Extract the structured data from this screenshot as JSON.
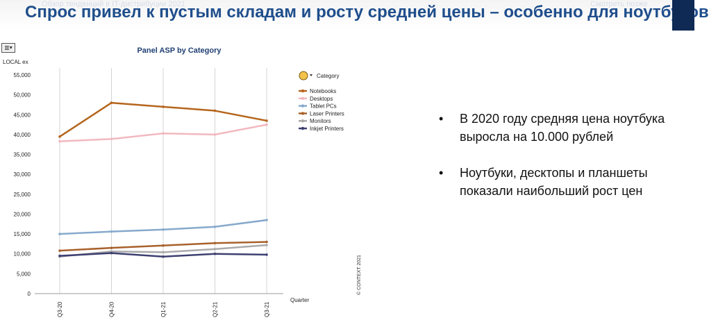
{
  "slide": {
    "title": "Спрос привел к пустым складам и росту средней цены – особенно для ноутбуков",
    "overlay_left": "Обзор тенденций в IT-дистрибуции 2021",
    "overlay_right": "Смотреть позже",
    "bullets": [
      "В 2020 году средняя цена ноутбука выросла на 10.000 рублей",
      "Ноутбуки, десктопы и планшеты показали наибольший рост цен"
    ],
    "colors": {
      "title": "#1f4e8c",
      "corner": "#0f2a55"
    }
  },
  "chart_data": {
    "type": "line",
    "title": "Panel ASP by Category",
    "ylabel": "LOCAL ex",
    "xlabel": "Quarter",
    "legend_title": "Category",
    "copyright": "© CONTEXT 2021",
    "categories": [
      "Q3-20",
      "Q4-20",
      "Q1-21",
      "Q2-21",
      "Q3-21"
    ],
    "ylim": [
      0,
      55000
    ],
    "yticks": [
      "0",
      "5,000",
      "10,000",
      "15,000",
      "20,000",
      "25,000",
      "30,000",
      "35,000",
      "40,000",
      "45,000",
      "50,000",
      "55,000"
    ],
    "grid": "vertical",
    "legend_position": "right",
    "series": [
      {
        "name": "Notebooks",
        "color": "#b5651d",
        "values": [
          39500,
          48000,
          47000,
          46000,
          43500
        ]
      },
      {
        "name": "Desktops",
        "color": "#f2b8bf",
        "values": [
          38300,
          38900,
          40300,
          40000,
          42500
        ]
      },
      {
        "name": "Tablet PCs",
        "color": "#86a9cc",
        "values": [
          15000,
          15600,
          16100,
          16800,
          18500
        ]
      },
      {
        "name": "Laser Printers",
        "color": "#a8612b",
        "values": [
          10800,
          11500,
          12100,
          12700,
          13000
        ]
      },
      {
        "name": "Monitors",
        "color": "#aaaaaa",
        "values": [
          9300,
          10600,
          10400,
          11200,
          12200
        ]
      },
      {
        "name": "Inkjet Printers",
        "color": "#3d3f70",
        "values": [
          9500,
          10200,
          9300,
          10000,
          9800
        ]
      }
    ]
  }
}
